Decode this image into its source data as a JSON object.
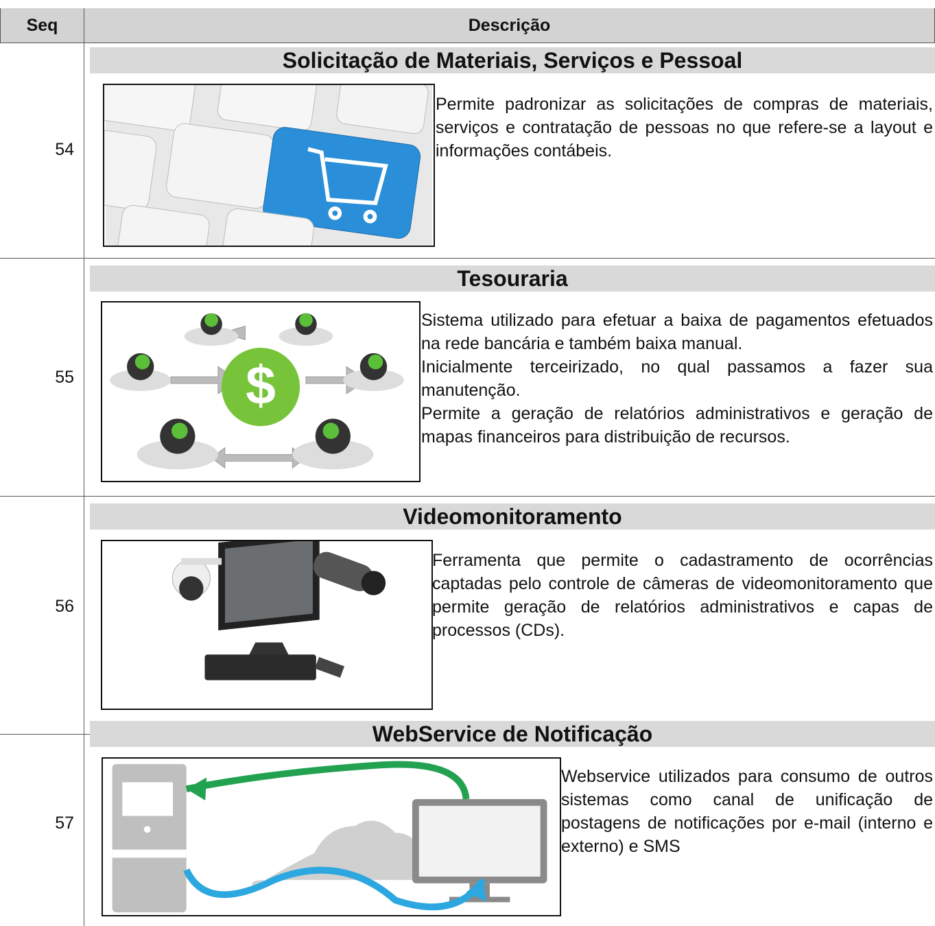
{
  "header": {
    "seq": "Seq",
    "description": "Descrição"
  },
  "rows": [
    {
      "seq": "54",
      "title": "Solicitação de Materiais, Serviços e Pessoal",
      "paragraphs": [
        "Permite padronizar as solicitações de compras de materiais, serviços e contratação de pessoas no que refere-se a layout e informações contábeis."
      ]
    },
    {
      "seq": "55",
      "title": "Tesouraria",
      "paragraphs": [
        "Sistema utilizado para efetuar a baixa de pagamentos efetuados na rede bancária e também baixa manual.",
        "Inicialmente terceirizado, no qual passamos a fazer sua manutenção.",
        "Permite a geração de relatórios administrativos e geração de mapas financeiros para distribuição de recursos."
      ]
    },
    {
      "seq": "56",
      "title": "Videomonitoramento",
      "paragraphs": [
        "Ferramenta que permite o cadastramento de ocorrências captadas pelo controle de câmeras de videomonitoramento que permite geração de relatórios administrativos e capas de processos (CDs)."
      ]
    },
    {
      "seq": "57",
      "title": "WebService de Notificação",
      "paragraphs": [
        "Webservice utilizados para consumo de outros sistemas como canal de unificação de postagens de notificações por e-mail (interno e externo) e SMS"
      ]
    }
  ]
}
